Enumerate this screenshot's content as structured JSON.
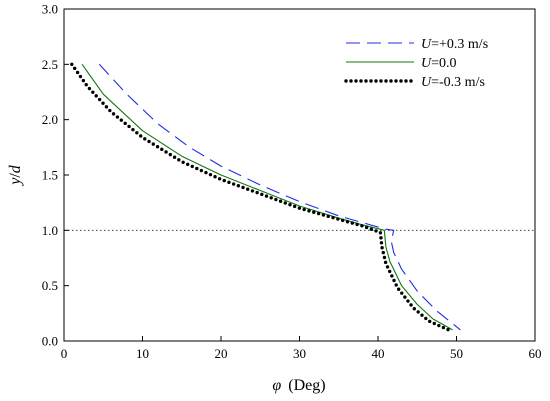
{
  "chart_data": {
    "type": "line",
    "xlabel": {
      "symbol": "φ",
      "unit": "(Deg)"
    },
    "ylabel": {
      "symbol": "y",
      "sep": "/",
      "denom": "d"
    },
    "xlim": [
      0,
      60
    ],
    "ylim": [
      0,
      3.0
    ],
    "xticks": [
      "0",
      "10",
      "20",
      "30",
      "40",
      "50",
      "60"
    ],
    "yticks": [
      "0.0",
      "0.5",
      "1.0",
      "1.5",
      "2.0",
      "2.5",
      "3.0"
    ],
    "grid": false,
    "legend_position": "top-right",
    "reference_line": {
      "y": 1.0,
      "style": "dotted",
      "color": "#444444"
    },
    "series": [
      {
        "name": "U=+0.3 m/s",
        "legend_italic": "U",
        "legend_rest": "=+0.3 m/s",
        "color": "#1f2fe0",
        "style": "dashed",
        "x": [
          4.5,
          8,
          12,
          16,
          20,
          25,
          30,
          35,
          38,
          41,
          42,
          41.7,
          42,
          43,
          45,
          47.5,
          50.5
        ],
        "y": [
          2.5,
          2.23,
          1.96,
          1.75,
          1.58,
          1.41,
          1.26,
          1.13,
          1.07,
          1.01,
          1.0,
          0.9,
          0.8,
          0.65,
          0.45,
          0.27,
          0.1
        ]
      },
      {
        "name": "U=0.0",
        "legend_italic": "U",
        "legend_rest": "=0.0",
        "color": "#117711",
        "style": "solid",
        "x": [
          2.3,
          5,
          10,
          15,
          20,
          25,
          30,
          35,
          38,
          40.8,
          41,
          41.5,
          43,
          45,
          47,
          49.5
        ],
        "y": [
          2.5,
          2.23,
          1.9,
          1.67,
          1.5,
          1.36,
          1.22,
          1.11,
          1.05,
          1.0,
          0.85,
          0.72,
          0.5,
          0.33,
          0.2,
          0.1
        ]
      },
      {
        "name": "U=-0.3 m/s",
        "legend_italic": "U",
        "legend_rest": "=-0.3 m/s",
        "color": "#000000",
        "style": "dotted",
        "x": [
          1,
          3,
          6,
          10,
          15,
          20,
          25,
          30,
          35,
          38,
          40.3,
          40.5,
          41,
          42.5,
          44.5,
          46.5,
          49
        ],
        "y": [
          2.5,
          2.3,
          2.07,
          1.84,
          1.62,
          1.46,
          1.33,
          1.2,
          1.1,
          1.04,
          0.98,
          0.85,
          0.7,
          0.48,
          0.3,
          0.18,
          0.1
        ]
      }
    ]
  }
}
